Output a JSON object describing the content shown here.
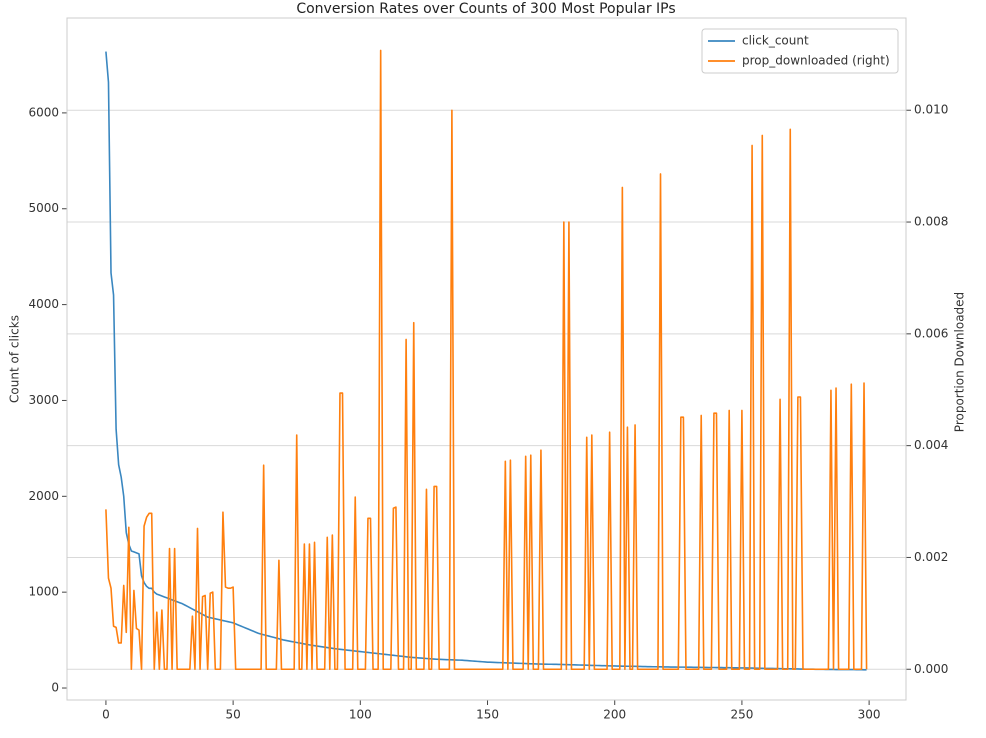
{
  "chart_data": {
    "type": "line",
    "title": "Conversion Rates over Counts of 300 Most Popular IPs",
    "ylabel": "Count of clicks",
    "y2label": "Proportion Downloaded",
    "legend": "upper right",
    "grid": true,
    "xlim": [
      -15.3,
      314.5
    ],
    "xticks": [
      0,
      50,
      100,
      150,
      200,
      250,
      300
    ],
    "ylim": [
      -125,
      6990
    ],
    "yticks": [
      0,
      1000,
      2000,
      3000,
      4000,
      5000,
      6000
    ],
    "y2lim": [
      -0.00055,
      0.01165
    ],
    "y2ticks": [
      {
        "value": 0,
        "label": "0.000"
      },
      {
        "value": 0.002,
        "label": "0.002"
      },
      {
        "value": 0.004,
        "label": "0.004"
      },
      {
        "value": 0.006,
        "label": "0.006"
      },
      {
        "value": 0.008,
        "label": "0.008"
      },
      {
        "value": 0.01,
        "label": "0.010"
      }
    ],
    "x": [
      0,
      1,
      2,
      3,
      4,
      5,
      6,
      7,
      8,
      9,
      10,
      11,
      12,
      13,
      14,
      15,
      16,
      17,
      18,
      19,
      20,
      21,
      22,
      23,
      24,
      25,
      26,
      27,
      28,
      29,
      30,
      31,
      32,
      33,
      34,
      35,
      36,
      37,
      38,
      39,
      40,
      41,
      42,
      43,
      44,
      45,
      46,
      47,
      48,
      49,
      50,
      51,
      52,
      53,
      54,
      55,
      56,
      57,
      58,
      59,
      60,
      61,
      62,
      63,
      64,
      65,
      66,
      67,
      68,
      69,
      70,
      71,
      72,
      73,
      74,
      75,
      76,
      77,
      78,
      79,
      80,
      81,
      82,
      83,
      84,
      85,
      86,
      87,
      88,
      89,
      90,
      91,
      92,
      93,
      94,
      95,
      96,
      97,
      98,
      99,
      100,
      101,
      102,
      103,
      104,
      105,
      106,
      107,
      108,
      109,
      110,
      111,
      112,
      113,
      114,
      115,
      116,
      117,
      118,
      119,
      120,
      121,
      122,
      123,
      124,
      125,
      126,
      127,
      128,
      129,
      130,
      131,
      132,
      133,
      134,
      135,
      136,
      137,
      138,
      139,
      140,
      141,
      142,
      143,
      144,
      145,
      146,
      147,
      148,
      149,
      150,
      151,
      152,
      153,
      154,
      155,
      156,
      157,
      158,
      159,
      160,
      161,
      162,
      163,
      164,
      165,
      166,
      167,
      168,
      169,
      170,
      171,
      172,
      173,
      174,
      175,
      176,
      177,
      178,
      179,
      180,
      181,
      182,
      183,
      184,
      185,
      186,
      187,
      188,
      189,
      190,
      191,
      192,
      193,
      194,
      195,
      196,
      197,
      198,
      199,
      200,
      201,
      202,
      203,
      204,
      205,
      206,
      207,
      208,
      209,
      210,
      211,
      212,
      213,
      214,
      215,
      216,
      217,
      218,
      219,
      220,
      221,
      222,
      223,
      224,
      225,
      226,
      227,
      228,
      229,
      230,
      231,
      232,
      233,
      234,
      235,
      236,
      237,
      238,
      239,
      240,
      241,
      242,
      243,
      244,
      245,
      246,
      247,
      248,
      249,
      250,
      251,
      252,
      253,
      254,
      255,
      256,
      257,
      258,
      259,
      260,
      261,
      262,
      263,
      264,
      265,
      266,
      267,
      268,
      269,
      270,
      271,
      272,
      273,
      274,
      275,
      276,
      277,
      278,
      279,
      280,
      281,
      282,
      283,
      284,
      285,
      286,
      287,
      288,
      289,
      290,
      291,
      292,
      293,
      294,
      295,
      296,
      297,
      298,
      299
    ],
    "series": [
      {
        "name": "click_count",
        "color": "#3a87c0",
        "axis": "y",
        "values": [
          6640,
          6320,
          4330,
          4100,
          2700,
          2330,
          2200,
          2000,
          1620,
          1500,
          1430,
          1420,
          1410,
          1400,
          1170,
          1100,
          1060,
          1040,
          1040,
          1000,
          980,
          970,
          960,
          950,
          940,
          930,
          920,
          910,
          900,
          890,
          880,
          866,
          852,
          838,
          824,
          810,
          796,
          782,
          768,
          754,
          740,
          734,
          728,
          722,
          716,
          710,
          704,
          698,
          692,
          686,
          680,
          669,
          658,
          647,
          636,
          625,
          614,
          603,
          592,
          581,
          570,
          563,
          556,
          549,
          542,
          535,
          528,
          521,
          514,
          507,
          500,
          495,
          490,
          485,
          480,
          475,
          470,
          465,
          460,
          455,
          450,
          446,
          442,
          438,
          434,
          430,
          426,
          422,
          418,
          414,
          410,
          407,
          404,
          401,
          398,
          395,
          392,
          389,
          386,
          383,
          380,
          377,
          374,
          371,
          368,
          365,
          362,
          359,
          356,
          353,
          350,
          347,
          344,
          341,
          338,
          335,
          332,
          329,
          326,
          323,
          320,
          318,
          316,
          314,
          312,
          310,
          308,
          306,
          304,
          302,
          300,
          299,
          298,
          297,
          296,
          295,
          294,
          293,
          292,
          291,
          290,
          288,
          286,
          284,
          282,
          280,
          278,
          276,
          274,
          272,
          270,
          269,
          268,
          267,
          266,
          265,
          264,
          263,
          262,
          261,
          260,
          259,
          258,
          257,
          256,
          255,
          254,
          253,
          252,
          251,
          250,
          250,
          249,
          249,
          248,
          248,
          247,
          247,
          246,
          246,
          245,
          244,
          243,
          242,
          242,
          241,
          240,
          239,
          239,
          238,
          237,
          236,
          236,
          235,
          234,
          233,
          233,
          232,
          231,
          230,
          230,
          229,
          229,
          228,
          228,
          227,
          227,
          226,
          226,
          225,
          225,
          224,
          224,
          223,
          223,
          222,
          222,
          221,
          221,
          220,
          220,
          220,
          219,
          219,
          219,
          218,
          218,
          218,
          217,
          217,
          217,
          216,
          216,
          216,
          215,
          215,
          215,
          214,
          214,
          214,
          213,
          213,
          213,
          212,
          212,
          212,
          211,
          211,
          211,
          210,
          210,
          209,
          209,
          208,
          208,
          207,
          207,
          206,
          206,
          205,
          205,
          204,
          204,
          203,
          203,
          202,
          202,
          201,
          201,
          200,
          200,
          199,
          199,
          198,
          198,
          197,
          197,
          196,
          196,
          195,
          195,
          195,
          195,
          194,
          194,
          194,
          194,
          193,
          193,
          193,
          193,
          192,
          192,
          192,
          192,
          191,
          191,
          191,
          190,
          190
        ]
      },
      {
        "name": "prop_downloaded (right)",
        "color": "#ff7f0e",
        "axis": "y2",
        "values": [
          0.00286,
          0.00163,
          0.00145,
          0.00077,
          0.00075,
          0.00047,
          0.00047,
          0.0015,
          0.00066,
          0.00254,
          0,
          0.00141,
          0.00073,
          0.0007,
          0,
          0.00256,
          0.00272,
          0.00279,
          0.00279,
          0,
          0.00102,
          0,
          0.00106,
          0,
          0,
          0.00216,
          0,
          0.00216,
          0,
          0,
          0,
          0,
          0,
          0,
          0.00095,
          0,
          0.00252,
          0,
          0.0013,
          0.00132,
          0,
          0.00136,
          0.00138,
          0,
          0,
          0,
          0.00281,
          0.00147,
          0.00145,
          0.00145,
          0.00147,
          0,
          0,
          0,
          0,
          0,
          0,
          0,
          0,
          0,
          0,
          0,
          0.00365,
          0,
          0,
          0,
          0,
          0,
          0.00195,
          0,
          0,
          0,
          0,
          0,
          0,
          0.00419,
          0,
          0,
          0.00224,
          0,
          0.00224,
          0,
          0.00227,
          0,
          0,
          0,
          0,
          0.00236,
          0,
          0.0024,
          0,
          0,
          0.00494,
          0.00494,
          0,
          0,
          0,
          0,
          0.00308,
          0,
          0,
          0,
          0,
          0.0027,
          0.0027,
          0,
          0,
          0,
          0.01107,
          0,
          0,
          0,
          0,
          0.00288,
          0.0029,
          0,
          0,
          0,
          0.0059,
          0,
          0,
          0.0062,
          0,
          0,
          0,
          0,
          0.00322,
          0,
          0,
          0.00327,
          0.00327,
          0,
          0,
          0,
          0,
          0,
          0.01,
          0,
          0,
          0,
          0,
          0,
          0,
          0,
          0,
          0,
          0,
          0,
          0,
          0,
          0,
          0,
          0,
          0,
          0,
          0,
          0,
          0.00372,
          0,
          0.00374,
          0,
          0,
          0,
          0,
          0,
          0.00381,
          0,
          0.00383,
          0,
          0,
          0,
          0.00392,
          0,
          0,
          0,
          0,
          0,
          0,
          0,
          0,
          0.008,
          0,
          0.008,
          0,
          0,
          0,
          0,
          0,
          0,
          0.00415,
          0,
          0.00419,
          0,
          0,
          0,
          0,
          0,
          0,
          0.00424,
          0,
          0,
          0,
          0,
          0.00862,
          0,
          0.00433,
          0,
          0,
          0.00437,
          0,
          0,
          0,
          0,
          0,
          0,
          0,
          0,
          0,
          0.00886,
          0,
          0,
          0,
          0,
          0,
          0,
          0,
          0.00451,
          0.00451,
          0,
          0,
          0,
          0,
          0,
          0,
          0.00454,
          0,
          0,
          0,
          0,
          0.00458,
          0.00458,
          0,
          0,
          0,
          0,
          0.00463,
          0,
          0,
          0,
          0,
          0.00463,
          0,
          0,
          0,
          0.00937,
          0,
          0,
          0,
          0.00955,
          0,
          0,
          0,
          0,
          0,
          0,
          0.00483,
          0,
          0,
          0,
          0.00966,
          0,
          0,
          0.00487,
          0.00487,
          0,
          0,
          0,
          0,
          0,
          0,
          0,
          0,
          0,
          0,
          0,
          0.00499,
          0,
          0.00503,
          0,
          0,
          0,
          0,
          0,
          0.0051,
          0,
          0,
          0,
          0,
          0.00512,
          0
        ]
      }
    ]
  }
}
